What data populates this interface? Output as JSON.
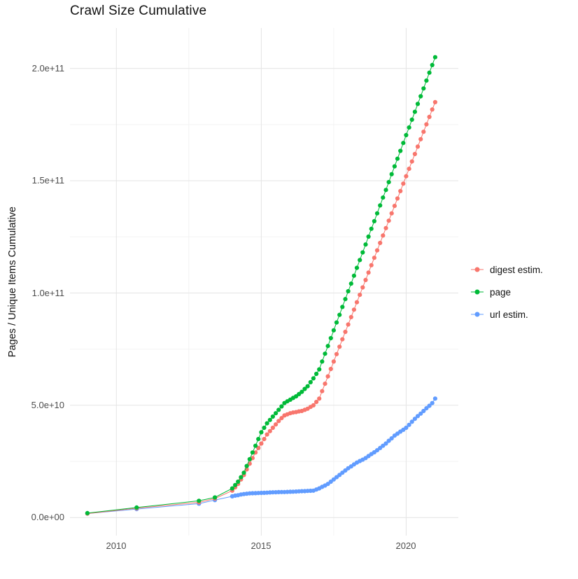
{
  "title": "Crawl Size Cumulative",
  "ylabel": "Pages / Unique Items Cumulative",
  "xlabel": "",
  "chart_data": {
    "type": "line",
    "title": "Crawl Size Cumulative",
    "xlabel": "",
    "ylabel": "Pages / Unique Items Cumulative",
    "legend_position": "right",
    "grid": true,
    "xlim": [
      2008.4,
      2021.8
    ],
    "ylim_billions": [
      -8,
      218
    ],
    "x_ticks": [
      {
        "value": 2010,
        "label": "2010"
      },
      {
        "value": 2015,
        "label": "2015"
      },
      {
        "value": 2020,
        "label": "2020"
      }
    ],
    "y_ticks": [
      {
        "value_billions": 0,
        "label": "0.0e+00"
      },
      {
        "value_billions": 50,
        "label": "5.0e+10"
      },
      {
        "value_billions": 100,
        "label": "1.0e+11"
      },
      {
        "value_billions": 150,
        "label": "1.5e+11"
      },
      {
        "value_billions": 200,
        "label": "2.0e+11"
      }
    ],
    "x_minor": [
      2012.5,
      2017.5
    ],
    "y_minor_billions": [
      25,
      75,
      125,
      175
    ],
    "value_unit": "items cumulative, values in billions (1e9)",
    "x": [
      2009,
      2010.7,
      2012.85,
      2013.4,
      2014,
      2014.1,
      2014.2,
      2014.3,
      2014.4,
      2014.5,
      2014.6,
      2014.7,
      2014.8,
      2014.9,
      2015,
      2015.1,
      2015.2,
      2015.3,
      2015.4,
      2015.5,
      2015.6,
      2015.7,
      2015.8,
      2015.9,
      2016,
      2016.1,
      2016.2,
      2016.3,
      2016.4,
      2016.5,
      2016.6,
      2016.7,
      2016.8,
      2016.9,
      2017,
      2017.1,
      2017.2,
      2017.3,
      2017.4,
      2017.5,
      2017.6,
      2017.7,
      2017.8,
      2017.9,
      2018,
      2018.1,
      2018.2,
      2018.3,
      2018.4,
      2018.5,
      2018.6,
      2018.7,
      2018.8,
      2018.9,
      2019,
      2019.1,
      2019.2,
      2019.3,
      2019.4,
      2019.5,
      2019.6,
      2019.7,
      2019.8,
      2019.9,
      2020,
      2020.1,
      2020.2,
      2020.3,
      2020.4,
      2020.5,
      2020.6,
      2020.7,
      2020.8,
      2020.9,
      2021
    ],
    "series": [
      {
        "name": "digest estim.",
        "color": "#F8766D",
        "values_billions": [
          1.8,
          4.2,
          6.8,
          8.5,
          12,
          13.5,
          15,
          17,
          19,
          21.5,
          24,
          26.5,
          29,
          31,
          33,
          35,
          37,
          38.5,
          40,
          41.5,
          43,
          44.3,
          45.5,
          46,
          46.5,
          46.8,
          47,
          47.3,
          47.5,
          48,
          48.5,
          49.3,
          50,
          51.5,
          53,
          56.3,
          59.6,
          62.9,
          66.2,
          69.5,
          72.8,
          76.1,
          79.4,
          82.7,
          86,
          89.3,
          92.6,
          95.9,
          99.2,
          102.5,
          105.8,
          109.1,
          112.4,
          115.7,
          119,
          122.3,
          125.6,
          128.9,
          132.2,
          135.5,
          138.8,
          142.1,
          145.4,
          148.7,
          152,
          155.3,
          158.6,
          161.9,
          165.2,
          168.5,
          171.8,
          175.1,
          178.4,
          181.7,
          185
        ]
      },
      {
        "name": "page",
        "color": "#00BA38",
        "values_billions": [
          2,
          4.5,
          7.5,
          9,
          13,
          14.5,
          16,
          18,
          20,
          23,
          26,
          29,
          32,
          35,
          38,
          40,
          42,
          43.5,
          45,
          46.5,
          48,
          49.5,
          51,
          51.8,
          52.5,
          53.3,
          54,
          55,
          56,
          57.3,
          58.5,
          60.3,
          62,
          64,
          66,
          69.5,
          73,
          76.4,
          79.9,
          83.4,
          86.9,
          90.3,
          93.8,
          97.3,
          100.8,
          104.2,
          107.7,
          111.2,
          114.7,
          118.1,
          121.6,
          125.1,
          128.6,
          132,
          135.5,
          139,
          142.5,
          145.9,
          149.4,
          152.9,
          156.4,
          159.8,
          163.3,
          166.8,
          170.3,
          173.7,
          177.2,
          180.7,
          184.2,
          187.6,
          191.1,
          194.6,
          198.1,
          201.5,
          205
        ]
      },
      {
        "name": "url estim.",
        "color": "#619CFF",
        "values_billions": [
          1.8,
          3.8,
          6.2,
          7.8,
          9.5,
          9.8,
          10,
          10.3,
          10.5,
          10.65,
          10.8,
          10.85,
          10.9,
          10.95,
          11,
          11.05,
          11.1,
          11.2,
          11.25,
          11.3,
          11.35,
          11.4,
          11.4,
          11.45,
          11.5,
          11.55,
          11.6,
          11.7,
          11.75,
          11.8,
          11.9,
          11.95,
          12,
          12.5,
          13,
          13.7,
          14.3,
          15,
          16,
          17,
          18,
          19,
          20,
          21,
          22,
          22.8,
          23.7,
          24.5,
          25.2,
          25.8,
          26.5,
          27.4,
          28.3,
          29.1,
          30,
          31,
          32,
          33,
          34.2,
          35.3,
          36.5,
          37.4,
          38.3,
          39.1,
          40,
          41.3,
          42.7,
          44,
          45.2,
          46.3,
          47.5,
          48.7,
          49.8,
          51,
          53
        ]
      }
    ]
  }
}
